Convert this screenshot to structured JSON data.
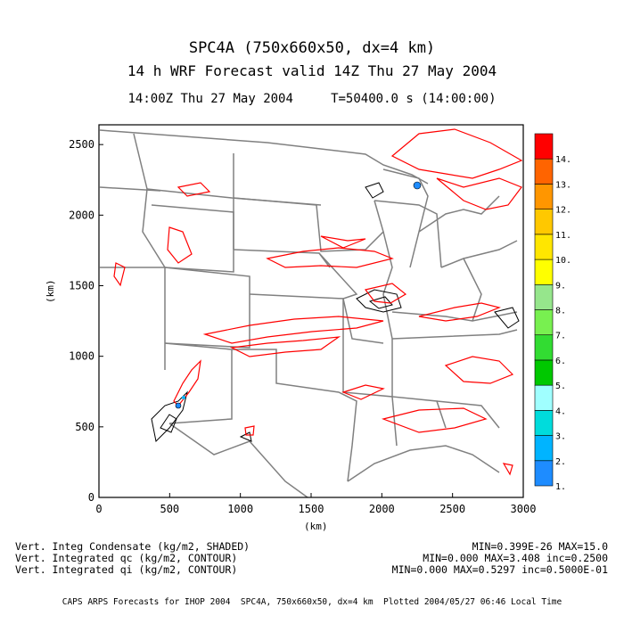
{
  "header": {
    "title1": "SPC4A (750x660x50, dx=4 km)",
    "title2": "14 h WRF Forecast valid 14Z Thu 27 May 2004",
    "time_left": "14:00Z Thu 27 May 2004",
    "time_right": "T=50400.0 s (14:00:00)"
  },
  "axes": {
    "xlabel": "(km)",
    "ylabel": "(km)",
    "x_ticks": [
      "0",
      "500",
      "1000",
      "1500",
      "2000",
      "2500",
      "3000"
    ],
    "y_ticks": [
      "0",
      "500",
      "1000",
      "1500",
      "2000",
      "2500"
    ],
    "xlim": [
      0,
      3000
    ],
    "ylim": [
      0,
      2640
    ]
  },
  "colorbar": {
    "labels": [
      "1.",
      "2.",
      "3.",
      "4.",
      "5.",
      "6.",
      "7.",
      "8.",
      "9.",
      "10.",
      "11.",
      "12.",
      "13.",
      "14."
    ],
    "colors": [
      "#1e8cff",
      "#00b4ff",
      "#00dcdc",
      "#a0ffff",
      "#00c800",
      "#32dc32",
      "#78f050",
      "#96e68c",
      "#ffff00",
      "#ffe600",
      "#ffc800",
      "#ff9600",
      "#ff6400",
      "#ff0000"
    ]
  },
  "legend": [
    {
      "label": "Vert. Integ Condensate (kg/m2, SHADED)",
      "stats": "MIN=0.399E-26 MAX=15.0"
    },
    {
      "label": "Vert. Integrated qc (kg/m2, CONTOUR)",
      "stats": "MIN=0.000 MAX=3.408 inc=0.2500"
    },
    {
      "label": "Vert. Integrated qi (kg/m2, CONTOUR)",
      "stats": "MIN=0.000 MAX=0.5297 inc=0.5000E-01"
    }
  ],
  "footer": "CAPS ARPS Forecasts for IHOP 2004  SPC4A, 750x660x50, dx=4 km  Plotted 2004/05/27 06:46 Local Time",
  "colors": {
    "qc_contour": "#ff0000",
    "qi_contour": "#000000",
    "borders": "#808080"
  }
}
